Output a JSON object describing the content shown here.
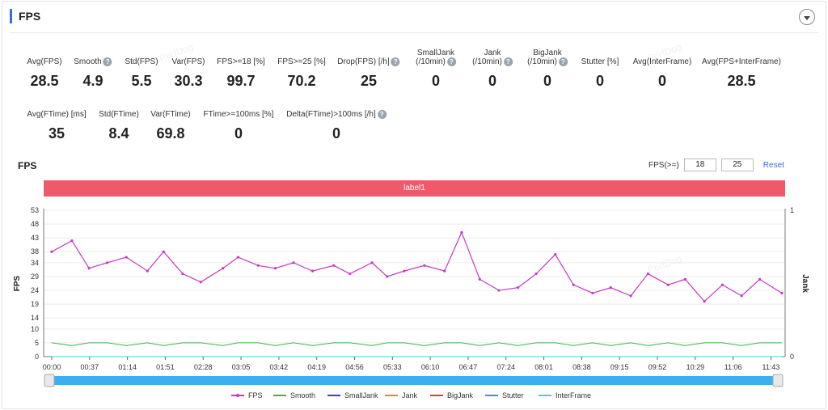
{
  "header": {
    "title": "FPS"
  },
  "stats_row1": [
    {
      "label": "Avg(FPS)",
      "help": false,
      "value": "28.5",
      "x": 55
    },
    {
      "label": "Smooth",
      "help": true,
      "value": "4.9",
      "x": 115
    },
    {
      "label": "Std(FPS)",
      "help": false,
      "value": "5.5",
      "x": 175
    },
    {
      "label": "Var(FPS)",
      "help": false,
      "value": "30.3",
      "x": 233
    },
    {
      "label": "FPS>=18 [%]",
      "help": false,
      "value": "99.7",
      "x": 298
    },
    {
      "label": "FPS>=25 [%]",
      "help": false,
      "value": "70.2",
      "x": 373
    },
    {
      "label": "Drop(FPS) [/h]",
      "help": true,
      "value": "25",
      "x": 456
    },
    {
      "label": "SmallJank",
      "label2": "(/10min)",
      "help": true,
      "value": "0",
      "x": 539
    },
    {
      "label": "Jank",
      "label2": "(/10min)",
      "help": true,
      "value": "0",
      "x": 609
    },
    {
      "label": "BigJank",
      "label2": "(/10min)",
      "help": true,
      "value": "0",
      "x": 677
    },
    {
      "label": "Stutter [%]",
      "help": false,
      "value": "0",
      "x": 742
    },
    {
      "label": "Avg(InterFrame)",
      "help": false,
      "value": "0",
      "x": 819
    },
    {
      "label": "Avg(FPS+InterFrame)",
      "help": false,
      "value": "28.5",
      "x": 917
    }
  ],
  "stats_row2": [
    {
      "label": "Avg(FTime) [ms]",
      "help": false,
      "value": "35",
      "x": 70
    },
    {
      "label": "Std(FTime)",
      "help": false,
      "value": "8.4",
      "x": 147
    },
    {
      "label": "Var(FTime)",
      "help": false,
      "value": "69.8",
      "x": 211
    },
    {
      "label": "FTime>=100ms [%]",
      "help": false,
      "value": "0",
      "x": 295
    },
    {
      "label": "Delta(FTime)>100ms [/h]",
      "help": true,
      "value": "0",
      "x": 416
    }
  ],
  "chart_section": {
    "title": "FPS",
    "filter_label": "FPS(>=)",
    "filter_low": "18",
    "filter_high": "25",
    "reset_label": "Reset",
    "banner_label": "label1"
  },
  "chart_data": {
    "type": "line",
    "title": "",
    "ylabel": "FPS",
    "y2label": "Jank",
    "yticks": [
      0,
      5,
      10,
      14,
      19,
      24,
      29,
      34,
      38,
      43,
      48,
      53
    ],
    "ylim": [
      0,
      53
    ],
    "y2ticks": [
      0,
      1
    ],
    "y2lim": [
      0,
      1
    ],
    "xticks": [
      "00:00",
      "00:37",
      "01:14",
      "01:51",
      "02:28",
      "03:05",
      "03:42",
      "04:19",
      "04:56",
      "05:33",
      "06:10",
      "06:47",
      "07:24",
      "08:01",
      "08:38",
      "09:15",
      "09:52",
      "10:29",
      "11:06",
      "11:43"
    ],
    "x_range_seconds": [
      0,
      725
    ],
    "grid": true,
    "legend": "bottom",
    "legend_items": [
      {
        "name": "FPS",
        "color": "#c33bc2"
      },
      {
        "name": "Smooth",
        "color": "#3cb44b"
      },
      {
        "name": "SmallJank",
        "color": "#3a3ad6"
      },
      {
        "name": "Jank",
        "color": "#f07f2a"
      },
      {
        "name": "BigJank",
        "color": "#e8382e"
      },
      {
        "name": "Stutter",
        "color": "#3d8ee6"
      },
      {
        "name": "InterFrame",
        "color": "#3ccfe0"
      }
    ],
    "series": [
      {
        "name": "FPS",
        "color": "#c33bc2",
        "x": [
          0,
          20,
          37,
          55,
          74,
          95,
          111,
          130,
          148,
          170,
          185,
          205,
          222,
          240,
          259,
          280,
          296,
          318,
          333,
          350,
          370,
          390,
          407,
          425,
          444,
          463,
          481,
          500,
          518,
          537,
          555,
          575,
          592,
          612,
          629,
          648,
          666,
          685,
          703,
          725
        ],
        "values": [
          38,
          42,
          32,
          34,
          36,
          31,
          38,
          30,
          27,
          32,
          36,
          33,
          32,
          34,
          31,
          33,
          30,
          34,
          29,
          31,
          33,
          31,
          45,
          28,
          24,
          25,
          30,
          37,
          26,
          23,
          25,
          22,
          30,
          26,
          28,
          20,
          26,
          22,
          28,
          23
        ]
      },
      {
        "name": "Smooth",
        "color": "#3cb44b",
        "x": [
          0,
          20,
          37,
          55,
          74,
          95,
          111,
          130,
          148,
          170,
          185,
          205,
          222,
          240,
          259,
          280,
          296,
          318,
          333,
          350,
          370,
          390,
          407,
          425,
          444,
          463,
          481,
          500,
          518,
          537,
          555,
          575,
          592,
          612,
          629,
          648,
          666,
          685,
          703,
          725
        ],
        "values": [
          5,
          4,
          5,
          5,
          4,
          5,
          4,
          5,
          5,
          4,
          5,
          5,
          4,
          5,
          4,
          5,
          5,
          4,
          5,
          5,
          4,
          5,
          5,
          4,
          5,
          4,
          5,
          5,
          4,
          5,
          4,
          5,
          4,
          5,
          4,
          5,
          5,
          4,
          5,
          5
        ]
      },
      {
        "name": "SmallJank",
        "color": "#3a3ad6",
        "x": [
          0,
          725
        ],
        "values": [
          0,
          0
        ]
      },
      {
        "name": "Jank",
        "color": "#f07f2a",
        "x": [
          0,
          725
        ],
        "values": [
          0,
          0
        ]
      },
      {
        "name": "BigJank",
        "color": "#e8382e",
        "x": [
          0,
          725
        ],
        "values": [
          0,
          0
        ]
      },
      {
        "name": "Stutter",
        "color": "#3d8ee6",
        "x": [
          0,
          725
        ],
        "values": [
          0,
          0
        ]
      },
      {
        "name": "InterFrame",
        "color": "#3ccfe0",
        "x": [
          0,
          725
        ],
        "values": [
          0,
          0
        ]
      }
    ]
  }
}
